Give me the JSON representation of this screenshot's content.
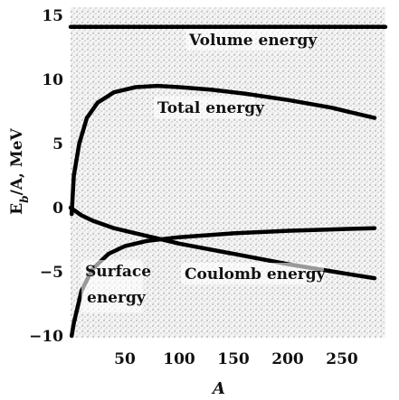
{
  "chart_data": {
    "type": "line",
    "xlabel": "A",
    "ylabel": "E_b/A, MeV",
    "xlim": [
      0,
      290
    ],
    "ylim": [
      -10,
      15
    ],
    "x_ticks": [
      "50",
      "100",
      "150",
      "200",
      "250"
    ],
    "x_tick_values": [
      50,
      100,
      150,
      200,
      250
    ],
    "y_ticks": [
      "15",
      "10",
      "5",
      "0",
      "-5",
      "-10"
    ],
    "y_tick_values": [
      15,
      10,
      5,
      0,
      -5,
      -10
    ],
    "background": "stippled",
    "series": [
      {
        "name": "Volume energy",
        "label": "Volume energy",
        "x": [
          0,
          290
        ],
        "y": [
          14.1,
          14.1
        ]
      },
      {
        "name": "Total energy",
        "label": "Total energy",
        "x": [
          1,
          3,
          8,
          15,
          25,
          40,
          60,
          80,
          100,
          130,
          160,
          200,
          240,
          280
        ],
        "y": [
          -0.5,
          2.5,
          5.0,
          7.0,
          8.2,
          9.0,
          9.4,
          9.5,
          9.4,
          9.2,
          8.9,
          8.4,
          7.8,
          7.0
        ]
      },
      {
        "name": "Surface energy",
        "label": "Surface energy",
        "x": [
          1,
          3,
          10,
          20,
          35,
          50,
          70,
          100,
          150,
          200,
          240,
          280
        ],
        "y": [
          -10.0,
          -9.0,
          -6.5,
          -4.8,
          -3.6,
          -3.0,
          -2.6,
          -2.3,
          -2.0,
          -1.8,
          -1.7,
          -1.6
        ]
      },
      {
        "name": "Coulomb energy",
        "label": "Coulomb energy",
        "x": [
          0,
          10,
          20,
          40,
          60,
          80,
          100,
          150,
          200,
          250,
          280
        ],
        "y": [
          0.0,
          -0.6,
          -1.0,
          -1.6,
          -2.0,
          -2.4,
          -2.8,
          -3.6,
          -4.4,
          -5.1,
          -5.5
        ]
      }
    ]
  },
  "labels": {
    "volume": "Volume energy",
    "total": "Total energy",
    "surface_line1": "Surface",
    "surface_line2": "energy",
    "coulomb": "Coulomb energy",
    "xlabel": "A",
    "ylabel": "E_b/A, MeV"
  }
}
